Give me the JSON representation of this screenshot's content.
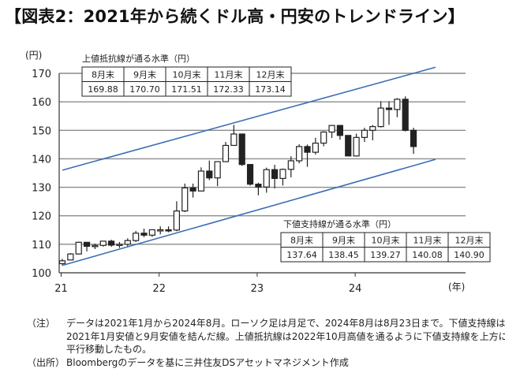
{
  "title": "【図表2：2021年から続くドル高・円安のトレンドライン】",
  "chart_data": {
    "type": "candlestick",
    "y_unit": "(円)",
    "x_unit": "(年)",
    "ylim": [
      100,
      170
    ],
    "yticks": [
      100,
      110,
      120,
      130,
      140,
      150,
      160,
      170
    ],
    "x_tick_labels": [
      "21",
      "22",
      "23",
      "24"
    ],
    "grid": "horizontal",
    "candles": [
      {
        "month": "2021-01",
        "open": 103.2,
        "high": 104.9,
        "low": 102.6,
        "close": 104.2
      },
      {
        "month": "2021-02",
        "open": 104.5,
        "high": 106.9,
        "low": 104.3,
        "close": 106.6
      },
      {
        "month": "2021-03",
        "open": 106.6,
        "high": 110.9,
        "low": 106.4,
        "close": 110.7
      },
      {
        "month": "2021-04",
        "open": 110.7,
        "high": 110.8,
        "low": 107.5,
        "close": 109.3
      },
      {
        "month": "2021-05",
        "open": 109.3,
        "high": 110.2,
        "low": 108.3,
        "close": 109.6
      },
      {
        "month": "2021-06",
        "open": 109.6,
        "high": 111.1,
        "low": 109.2,
        "close": 111.1
      },
      {
        "month": "2021-07",
        "open": 111.1,
        "high": 111.6,
        "low": 109.1,
        "close": 109.7
      },
      {
        "month": "2021-08",
        "open": 109.7,
        "high": 110.8,
        "low": 108.7,
        "close": 110.0
      },
      {
        "month": "2021-09",
        "open": 110.0,
        "high": 112.1,
        "low": 109.1,
        "close": 111.3
      },
      {
        "month": "2021-10",
        "open": 111.3,
        "high": 114.7,
        "low": 110.8,
        "close": 113.9
      },
      {
        "month": "2021-11",
        "open": 113.9,
        "high": 115.5,
        "low": 112.5,
        "close": 113.2
      },
      {
        "month": "2021-12",
        "open": 113.2,
        "high": 115.2,
        "low": 112.6,
        "close": 115.1
      },
      {
        "month": "2022-01",
        "open": 115.1,
        "high": 116.3,
        "low": 113.5,
        "close": 115.1
      },
      {
        "month": "2022-02",
        "open": 115.1,
        "high": 116.3,
        "low": 114.2,
        "close": 115.0
      },
      {
        "month": "2022-03",
        "open": 115.0,
        "high": 125.1,
        "low": 114.6,
        "close": 121.7
      },
      {
        "month": "2022-04",
        "open": 121.7,
        "high": 131.3,
        "low": 121.3,
        "close": 129.8
      },
      {
        "month": "2022-05",
        "open": 129.8,
        "high": 131.3,
        "low": 126.4,
        "close": 128.7
      },
      {
        "month": "2022-06",
        "open": 128.7,
        "high": 137.0,
        "low": 128.6,
        "close": 135.7
      },
      {
        "month": "2022-07",
        "open": 135.7,
        "high": 139.4,
        "low": 132.5,
        "close": 133.3
      },
      {
        "month": "2022-08",
        "open": 133.3,
        "high": 139.1,
        "low": 130.4,
        "close": 139.0
      },
      {
        "month": "2022-09",
        "open": 139.0,
        "high": 145.9,
        "low": 139.0,
        "close": 144.7
      },
      {
        "month": "2022-10",
        "open": 144.7,
        "high": 151.9,
        "low": 144.6,
        "close": 148.7
      },
      {
        "month": "2022-11",
        "open": 148.7,
        "high": 148.8,
        "low": 137.5,
        "close": 138.0
      },
      {
        "month": "2022-12",
        "open": 138.0,
        "high": 138.2,
        "low": 130.6,
        "close": 131.1
      },
      {
        "month": "2023-01",
        "open": 131.1,
        "high": 131.6,
        "low": 127.2,
        "close": 130.1
      },
      {
        "month": "2023-02",
        "open": 130.1,
        "high": 136.9,
        "low": 128.1,
        "close": 136.2
      },
      {
        "month": "2023-03",
        "open": 136.2,
        "high": 137.9,
        "low": 129.6,
        "close": 133.1
      },
      {
        "month": "2023-04",
        "open": 133.1,
        "high": 136.6,
        "low": 130.6,
        "close": 136.3
      },
      {
        "month": "2023-05",
        "open": 136.3,
        "high": 140.9,
        "low": 133.5,
        "close": 139.3
      },
      {
        "month": "2023-06",
        "open": 139.3,
        "high": 145.1,
        "low": 138.4,
        "close": 144.3
      },
      {
        "month": "2023-07",
        "open": 144.3,
        "high": 145.0,
        "low": 137.2,
        "close": 142.3
      },
      {
        "month": "2023-08",
        "open": 142.3,
        "high": 147.4,
        "low": 141.5,
        "close": 145.5
      },
      {
        "month": "2023-09",
        "open": 145.5,
        "high": 149.7,
        "low": 144.4,
        "close": 149.4
      },
      {
        "month": "2023-10",
        "open": 149.4,
        "high": 151.7,
        "low": 147.3,
        "close": 151.7
      },
      {
        "month": "2023-11",
        "open": 151.7,
        "high": 151.9,
        "low": 146.7,
        "close": 148.2
      },
      {
        "month": "2023-12",
        "open": 148.2,
        "high": 148.3,
        "low": 140.9,
        "close": 141.0
      },
      {
        "month": "2024-01",
        "open": 141.0,
        "high": 148.8,
        "low": 140.8,
        "close": 147.5
      },
      {
        "month": "2024-02",
        "open": 147.5,
        "high": 150.9,
        "low": 145.9,
        "close": 150.0
      },
      {
        "month": "2024-03",
        "open": 150.0,
        "high": 151.9,
        "low": 146.5,
        "close": 151.3
      },
      {
        "month": "2024-04",
        "open": 151.3,
        "high": 160.2,
        "low": 151.0,
        "close": 157.8
      },
      {
        "month": "2024-05",
        "open": 157.8,
        "high": 160.2,
        "low": 151.9,
        "close": 157.3
      },
      {
        "month": "2024-06",
        "open": 157.3,
        "high": 161.3,
        "low": 154.6,
        "close": 160.9
      },
      {
        "month": "2024-07",
        "open": 160.9,
        "high": 161.9,
        "low": 149.6,
        "close": 150.0
      },
      {
        "month": "2024-08",
        "open": 150.0,
        "high": 150.9,
        "low": 141.7,
        "close": 144.3
      }
    ],
    "trend_lines": [
      {
        "name": "上値抵抗線",
        "start": {
          "month": "2021-01",
          "value": 136.0
        },
        "end": {
          "month": "2024-08",
          "value": 170.0
        }
      },
      {
        "name": "下値支持線",
        "start": {
          "month": "2021-01",
          "value": 102.6
        },
        "end": {
          "month": "2024-08",
          "value": 137.6
        }
      }
    ],
    "upper_table": {
      "caption": "上値抵抗線が通る水準（円）",
      "headers": [
        "8月末",
        "9月末",
        "10月末",
        "11月末",
        "12月末"
      ],
      "values": [
        "169.88",
        "170.70",
        "171.51",
        "172.33",
        "173.14"
      ]
    },
    "lower_table": {
      "caption": "下値支持線が通る水準（円）",
      "headers": [
        "8月末",
        "9月末",
        "10月末",
        "11月末",
        "12月末"
      ],
      "values": [
        "137.64",
        "138.45",
        "139.27",
        "140.08",
        "140.90"
      ]
    }
  },
  "notes": [
    {
      "label": "（注）",
      "text": "データは2021年1月から2024年8月。ローソク足は月足で、2024年8月は8月23日まで。下値支持線は2021年1月安値と9月安値を結んだ線。上値抵抗線は2022年10月高値を通るように下値支持線を上方に平行移動したもの。"
    },
    {
      "label": "（出所）",
      "text": "Bloombergのデータを基に三井住友DSアセットマネジメント作成"
    }
  ]
}
